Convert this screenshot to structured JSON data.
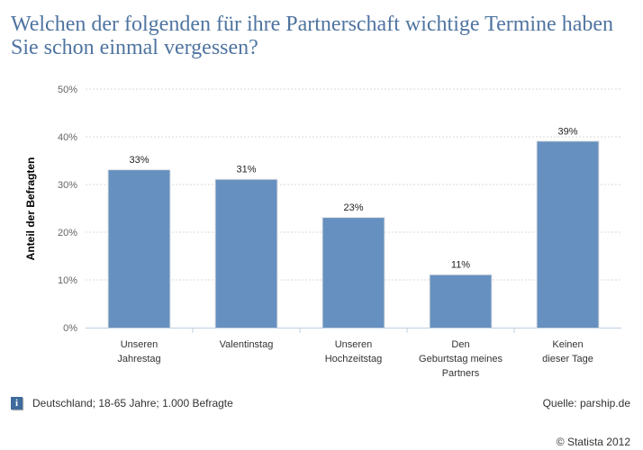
{
  "chart_data": {
    "type": "bar",
    "title": "Welchen der folgenden für ihre Partnerschaft wichtige Termine haben Sie schon einmal vergessen?",
    "xlabel": "",
    "ylabel": "Anteil der Befragten",
    "ylim": [
      0,
      50
    ],
    "yticks": [
      0,
      10,
      20,
      30,
      40,
      50
    ],
    "ytick_labels": [
      "0%",
      "10%",
      "20%",
      "30%",
      "40%",
      "50%"
    ],
    "grid": true,
    "categories": [
      [
        "Unseren",
        "Jahrestag"
      ],
      [
        "Valentinstag"
      ],
      [
        "Unseren",
        "Hochzeitstag"
      ],
      [
        "Den",
        "Geburtstag meines",
        "Partners"
      ],
      [
        "Keinen",
        "dieser Tage"
      ]
    ],
    "values": [
      33,
      31,
      23,
      11,
      39
    ],
    "value_labels": [
      "33%",
      "31%",
      "23%",
      "11%",
      "39%"
    ],
    "bar_color": "#6690bf"
  },
  "footer": {
    "info_icon": "i",
    "note": "Deutschland; 18-65 Jahre; 1.000 Befragte",
    "source": "Quelle: parship.de",
    "copyright": "© Statista 2012"
  }
}
